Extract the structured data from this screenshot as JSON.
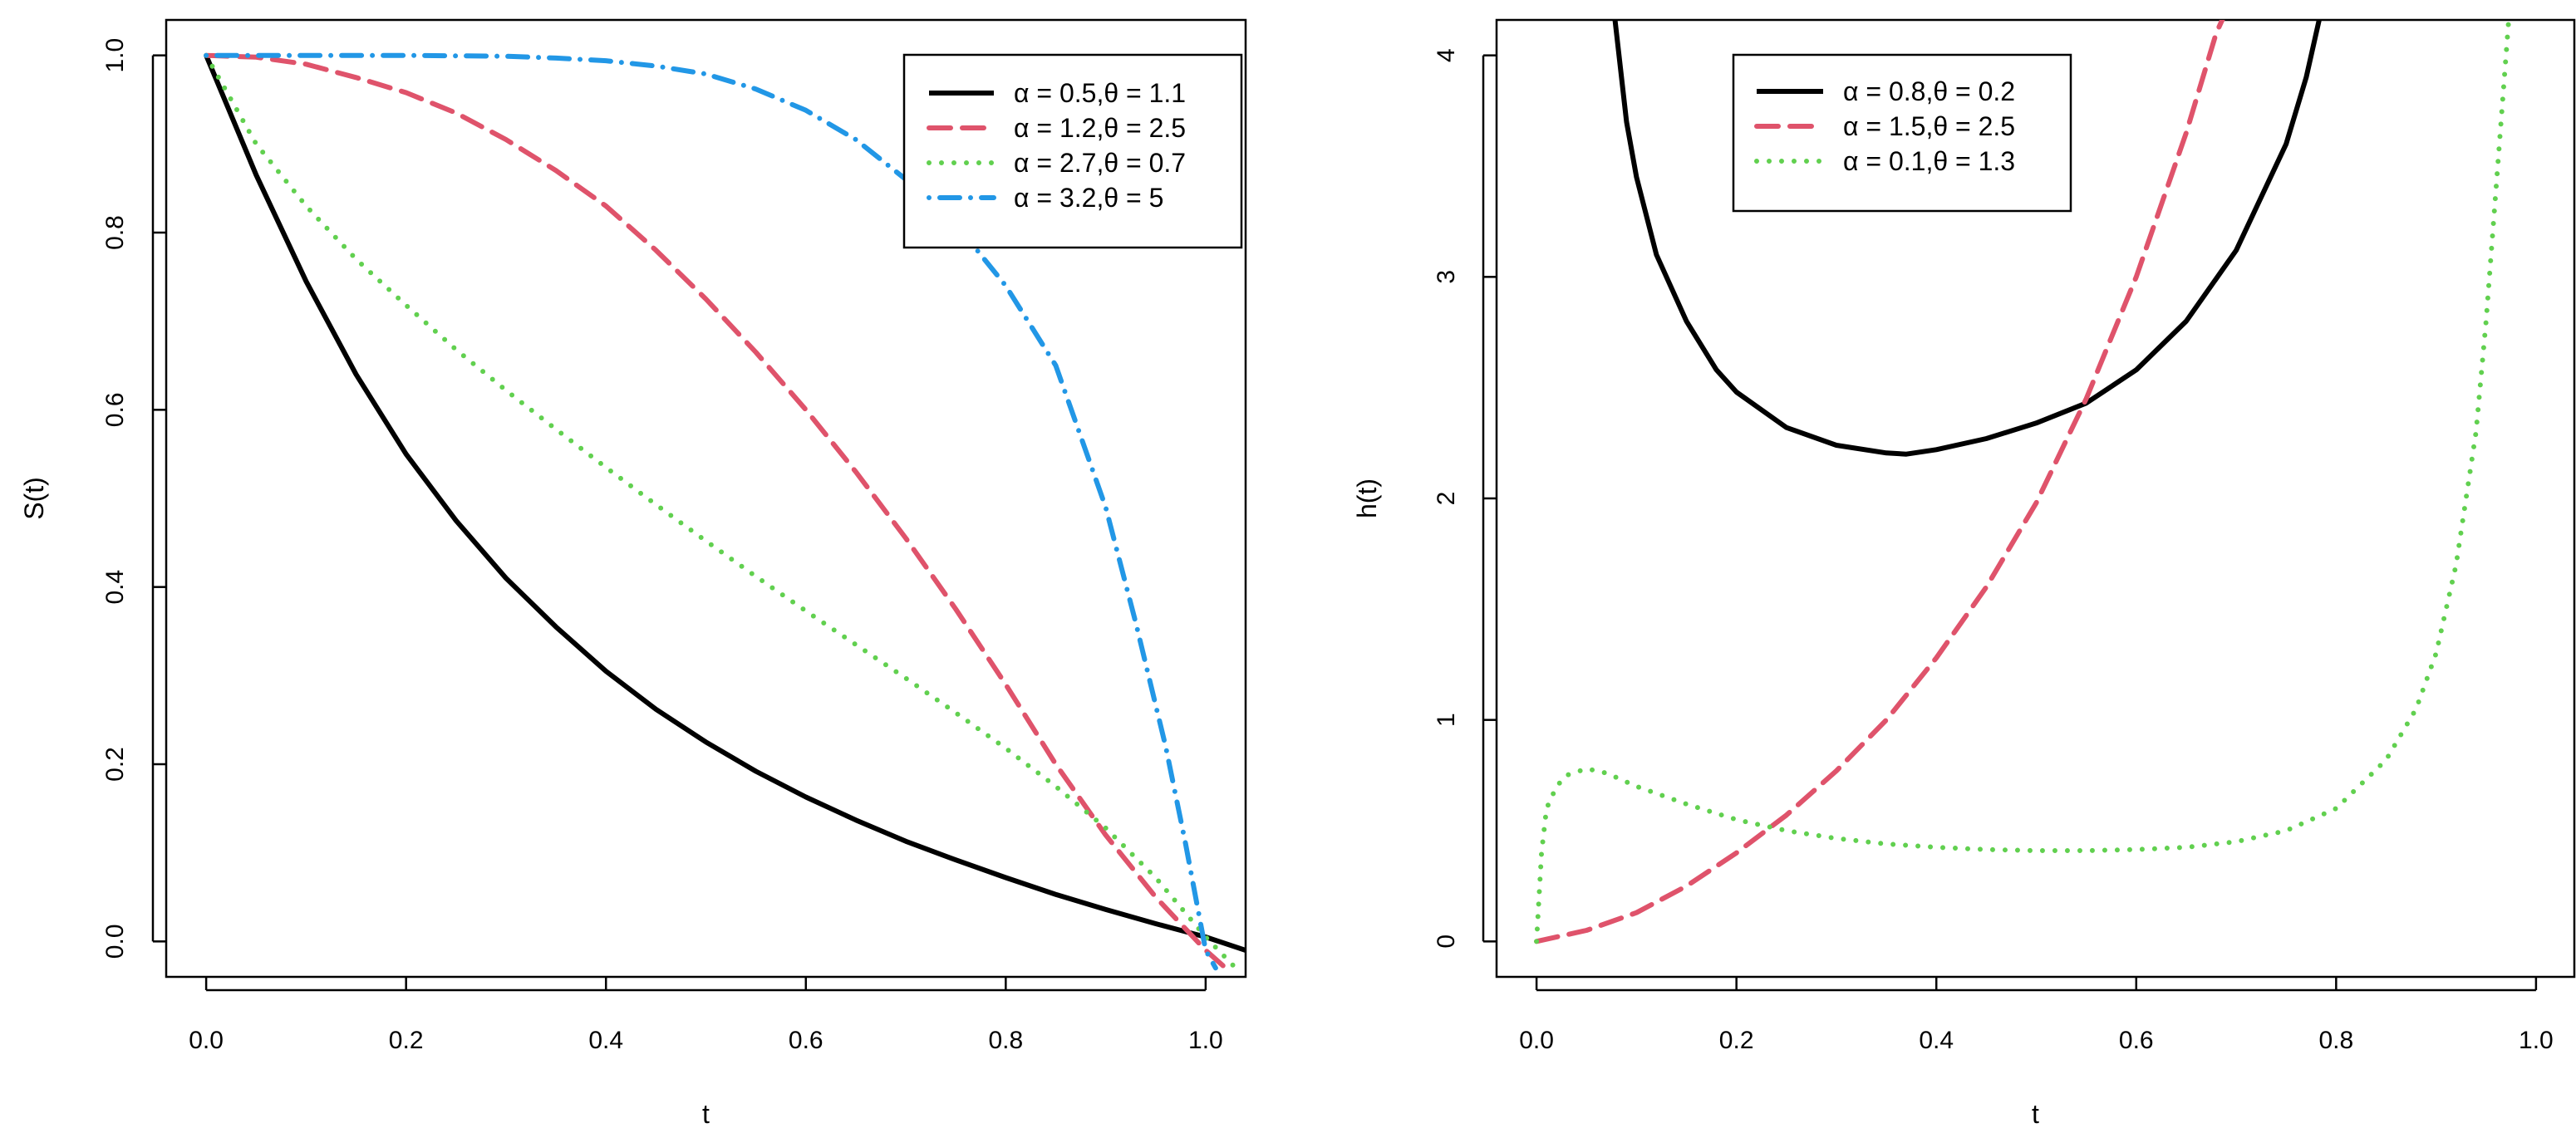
{
  "chart_data": [
    {
      "type": "line",
      "xlabel": "t",
      "ylabel": "S(t)",
      "xlim": [
        -0.04,
        1.04
      ],
      "ylim": [
        -0.04,
        1.04
      ],
      "xticks": [
        "0.0",
        "0.2",
        "0.4",
        "0.6",
        "0.8",
        "1.0"
      ],
      "yticks": [
        "0.0",
        "0.2",
        "0.4",
        "0.6",
        "0.8",
        "1.0"
      ],
      "legend_position": "top-right",
      "series": [
        {
          "name": "α = 0.5,θ = 1.1",
          "color": "#000000",
          "style": "solid",
          "x": [
            0.0,
            0.05,
            0.1,
            0.15,
            0.2,
            0.25,
            0.3,
            0.35,
            0.4,
            0.45,
            0.5,
            0.55,
            0.6,
            0.65,
            0.7,
            0.75,
            0.8,
            0.85,
            0.9,
            0.95,
            1.0,
            1.04
          ],
          "y": [
            1.0,
            0.865,
            0.745,
            0.64,
            0.55,
            0.475,
            0.41,
            0.355,
            0.305,
            0.262,
            0.225,
            0.192,
            0.163,
            0.137,
            0.113,
            0.092,
            0.072,
            0.053,
            0.036,
            0.02,
            0.005,
            -0.01
          ]
        },
        {
          "name": "α = 1.2,θ = 2.5",
          "color": "#DF536B",
          "style": "dashed",
          "x": [
            0.0,
            0.05,
            0.1,
            0.15,
            0.2,
            0.25,
            0.3,
            0.35,
            0.4,
            0.45,
            0.5,
            0.55,
            0.6,
            0.65,
            0.7,
            0.75,
            0.8,
            0.85,
            0.9,
            0.95,
            1.0,
            1.02
          ],
          "y": [
            1.0,
            0.998,
            0.99,
            0.975,
            0.958,
            0.935,
            0.905,
            0.87,
            0.83,
            0.78,
            0.725,
            0.665,
            0.6,
            0.53,
            0.455,
            0.375,
            0.29,
            0.2,
            0.12,
            0.05,
            -0.01,
            -0.03
          ]
        },
        {
          "name": "α = 2.7,θ = 0.7",
          "color": "#61D04F",
          "style": "dotted",
          "x": [
            0.0,
            0.05,
            0.1,
            0.15,
            0.2,
            0.25,
            0.3,
            0.35,
            0.4,
            0.45,
            0.5,
            0.55,
            0.6,
            0.65,
            0.7,
            0.75,
            0.8,
            0.85,
            0.9,
            0.95,
            1.0,
            1.03
          ],
          "y": [
            1.0,
            0.9,
            0.83,
            0.77,
            0.718,
            0.668,
            0.622,
            0.578,
            0.535,
            0.493,
            0.452,
            0.412,
            0.373,
            0.335,
            0.297,
            0.258,
            0.218,
            0.175,
            0.128,
            0.072,
            0.005,
            -0.03
          ]
        },
        {
          "name": "α = 3.2,θ = 5",
          "color": "#2297E6",
          "style": "dotdash",
          "x": [
            0.0,
            0.1,
            0.2,
            0.3,
            0.35,
            0.4,
            0.45,
            0.5,
            0.55,
            0.6,
            0.65,
            0.7,
            0.75,
            0.8,
            0.85,
            0.9,
            0.93,
            0.96,
            0.98,
            1.0,
            1.01
          ],
          "y": [
            1.0,
            1.0,
            1.0,
            0.999,
            0.997,
            0.994,
            0.988,
            0.979,
            0.962,
            0.938,
            0.905,
            0.86,
            0.81,
            0.74,
            0.65,
            0.49,
            0.36,
            0.22,
            0.11,
            -0.01,
            -0.03
          ]
        }
      ]
    },
    {
      "type": "line",
      "xlabel": "t",
      "ylabel": "h(t)",
      "xlim": [
        -0.04,
        1.04
      ],
      "ylim": [
        -0.16,
        4.16
      ],
      "xticks": [
        "0.0",
        "0.2",
        "0.4",
        "0.6",
        "0.8",
        "1.0"
      ],
      "yticks": [
        "0",
        "1",
        "2",
        "3",
        "4"
      ],
      "legend_position": "top-center",
      "series": [
        {
          "name": "α = 0.8,θ = 0.2",
          "color": "#000000",
          "style": "solid",
          "x": [
            0.075,
            0.09,
            0.1,
            0.12,
            0.15,
            0.18,
            0.2,
            0.25,
            0.3,
            0.35,
            0.37,
            0.4,
            0.45,
            0.5,
            0.55,
            0.6,
            0.65,
            0.7,
            0.75,
            0.77,
            0.79
          ],
          "y": [
            4.3,
            3.7,
            3.45,
            3.1,
            2.8,
            2.58,
            2.48,
            2.32,
            2.24,
            2.205,
            2.2,
            2.22,
            2.27,
            2.34,
            2.43,
            2.58,
            2.8,
            3.12,
            3.6,
            3.9,
            4.3
          ]
        },
        {
          "name": "α = 1.5,θ = 2.5",
          "color": "#DF536B",
          "style": "dashed",
          "x": [
            0.0,
            0.05,
            0.1,
            0.15,
            0.2,
            0.25,
            0.3,
            0.35,
            0.4,
            0.45,
            0.5,
            0.55,
            0.6,
            0.65,
            0.68,
            0.7
          ],
          "y": [
            0.0,
            0.05,
            0.13,
            0.25,
            0.4,
            0.57,
            0.77,
            1.0,
            1.28,
            1.6,
            1.98,
            2.45,
            3.0,
            3.65,
            4.1,
            4.3
          ]
        },
        {
          "name": "α = 0.1,θ = 1.3",
          "color": "#61D04F",
          "style": "dotted",
          "x": [
            0.0,
            0.005,
            0.01,
            0.02,
            0.03,
            0.05,
            0.07,
            0.1,
            0.15,
            0.2,
            0.25,
            0.3,
            0.35,
            0.4,
            0.45,
            0.5,
            0.55,
            0.6,
            0.65,
            0.7,
            0.75,
            0.8,
            0.85,
            0.88,
            0.9,
            0.92,
            0.94,
            0.95,
            0.96,
            0.97,
            0.975,
            0.98
          ],
          "y": [
            0.0,
            0.4,
            0.6,
            0.7,
            0.75,
            0.78,
            0.76,
            0.7,
            0.62,
            0.55,
            0.5,
            0.465,
            0.44,
            0.425,
            0.415,
            0.41,
            0.41,
            0.415,
            0.425,
            0.45,
            0.5,
            0.6,
            0.82,
            1.05,
            1.3,
            1.7,
            2.3,
            2.8,
            3.4,
            4.0,
            4.3,
            4.6
          ]
        }
      ]
    }
  ]
}
